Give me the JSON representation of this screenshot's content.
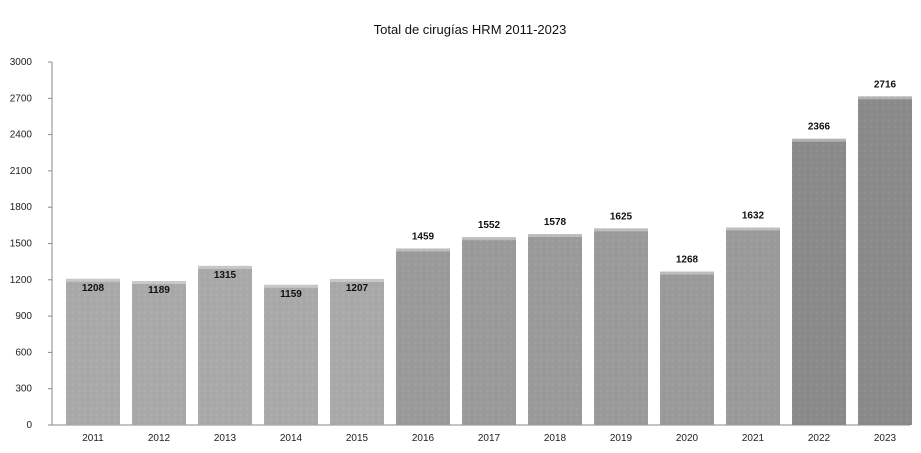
{
  "chart_data": {
    "type": "bar",
    "title": "Total de cirugías HRM 2011-2023",
    "xlabel": "",
    "ylabel": "",
    "categories": [
      "2011",
      "2012",
      "2013",
      "2014",
      "2015",
      "2016",
      "2017",
      "2018",
      "2019",
      "2020",
      "2021",
      "2022",
      "2023"
    ],
    "values": [
      1208,
      1189,
      1315,
      1159,
      1207,
      1459,
      1552,
      1578,
      1625,
      1268,
      1632,
      2366,
      2716
    ],
    "value_labels": [
      "1208",
      "1189",
      "1315",
      "1159",
      "1207",
      "1459",
      "1552",
      "1578",
      "1625",
      "1268",
      "1632",
      "2366",
      "2716"
    ],
    "ylim": [
      0,
      3000
    ],
    "yticks": [
      "0",
      "300",
      "600",
      "900",
      "1200",
      "1500",
      "1800",
      "2100",
      "2400",
      "2700",
      "3000"
    ],
    "grid": false,
    "legend": "none",
    "colors": {
      "bar_light": "#a9a9a9",
      "bar_mid": "#9a9a9a",
      "bar_dark": "#8a8a8a",
      "axis": "#8a8a8a",
      "text": "#111111"
    }
  }
}
